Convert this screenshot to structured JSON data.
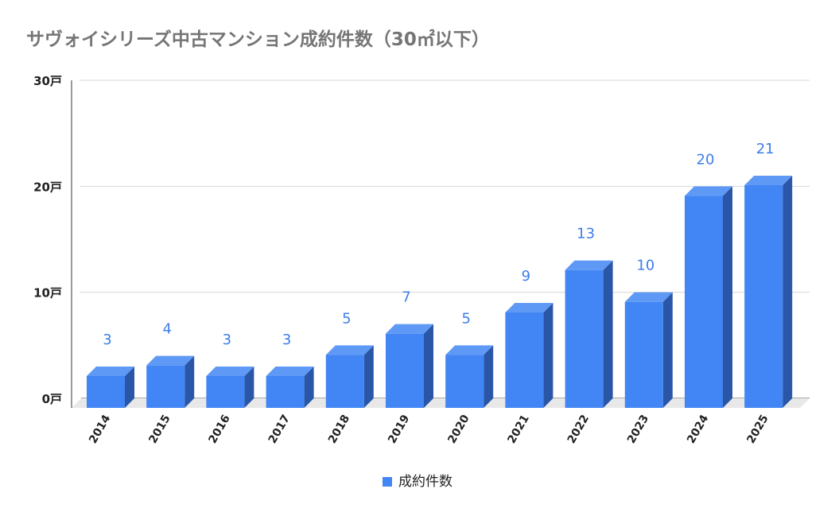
{
  "chart_data": {
    "type": "bar",
    "title": "サヴォイシリーズ中古マンション成約件数（30㎡以下）",
    "categories": [
      "2014",
      "2015",
      "2016",
      "2017",
      "2018",
      "2019",
      "2020",
      "2021",
      "2022",
      "2023",
      "2024",
      "2025"
    ],
    "series": [
      {
        "name": "成約件数",
        "values": [
          3,
          4,
          3,
          3,
          5,
          7,
          5,
          9,
          13,
          10,
          20,
          21
        ],
        "color": "#4285f4"
      }
    ],
    "yticks": [
      "0戸",
      "10戸",
      "20戸",
      "30戸"
    ],
    "ylim": [
      0,
      30
    ],
    "grid": true,
    "bar_style": "3d",
    "data_labels": true,
    "legend": "bottom"
  }
}
